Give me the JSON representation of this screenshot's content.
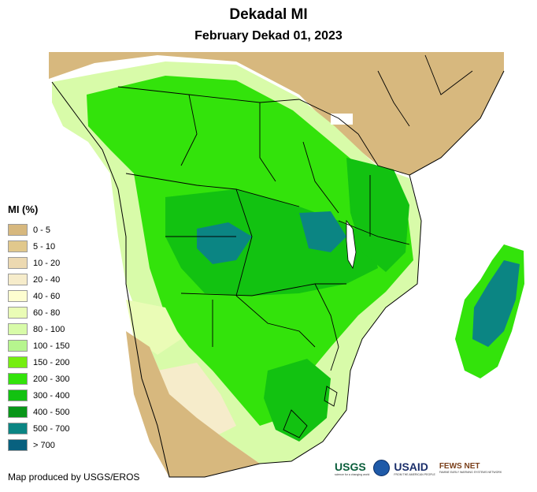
{
  "header": {
    "title": "Dekadal MI",
    "subtitle": "February Dekad 01, 2023"
  },
  "legend": {
    "title": "MI (%)",
    "items": [
      {
        "label": "0 - 5",
        "color": "#d7b87e"
      },
      {
        "label": "5 - 10",
        "color": "#e1c88c"
      },
      {
        "label": "10 - 20",
        "color": "#ecd9b1"
      },
      {
        "label": "20 - 40",
        "color": "#f6eccb"
      },
      {
        "label": "40 - 60",
        "color": "#fdfdd0"
      },
      {
        "label": "60 - 80",
        "color": "#eafcb6"
      },
      {
        "label": "80 - 100",
        "color": "#d8fba9"
      },
      {
        "label": "100 - 150",
        "color": "#b6f58e"
      },
      {
        "label": "150 - 200",
        "color": "#76ee10"
      },
      {
        "label": "200 - 300",
        "color": "#33e30b"
      },
      {
        "label": "300 - 400",
        "color": "#12c211"
      },
      {
        "label": "400 - 500",
        "color": "#099619"
      },
      {
        "label": "500 - 700",
        "color": "#0b8583"
      },
      {
        "label": "> 700",
        "color": "#08617f"
      }
    ]
  },
  "credit": "Map produced by USGS/EROS",
  "logos": {
    "usgs": "USGS",
    "usgs_tagline": "science for a changing world",
    "usaid": "USAID",
    "usaid_tagline": "FROM THE AMERICAN PEOPLE",
    "fews": "FEWS NET",
    "fews_tagline": "FAMINE EARLY WARNING SYSTEMS NETWORK"
  },
  "colors": {
    "desert": "#d7b87e",
    "dry": "#e1c88c",
    "border": "#000000"
  }
}
